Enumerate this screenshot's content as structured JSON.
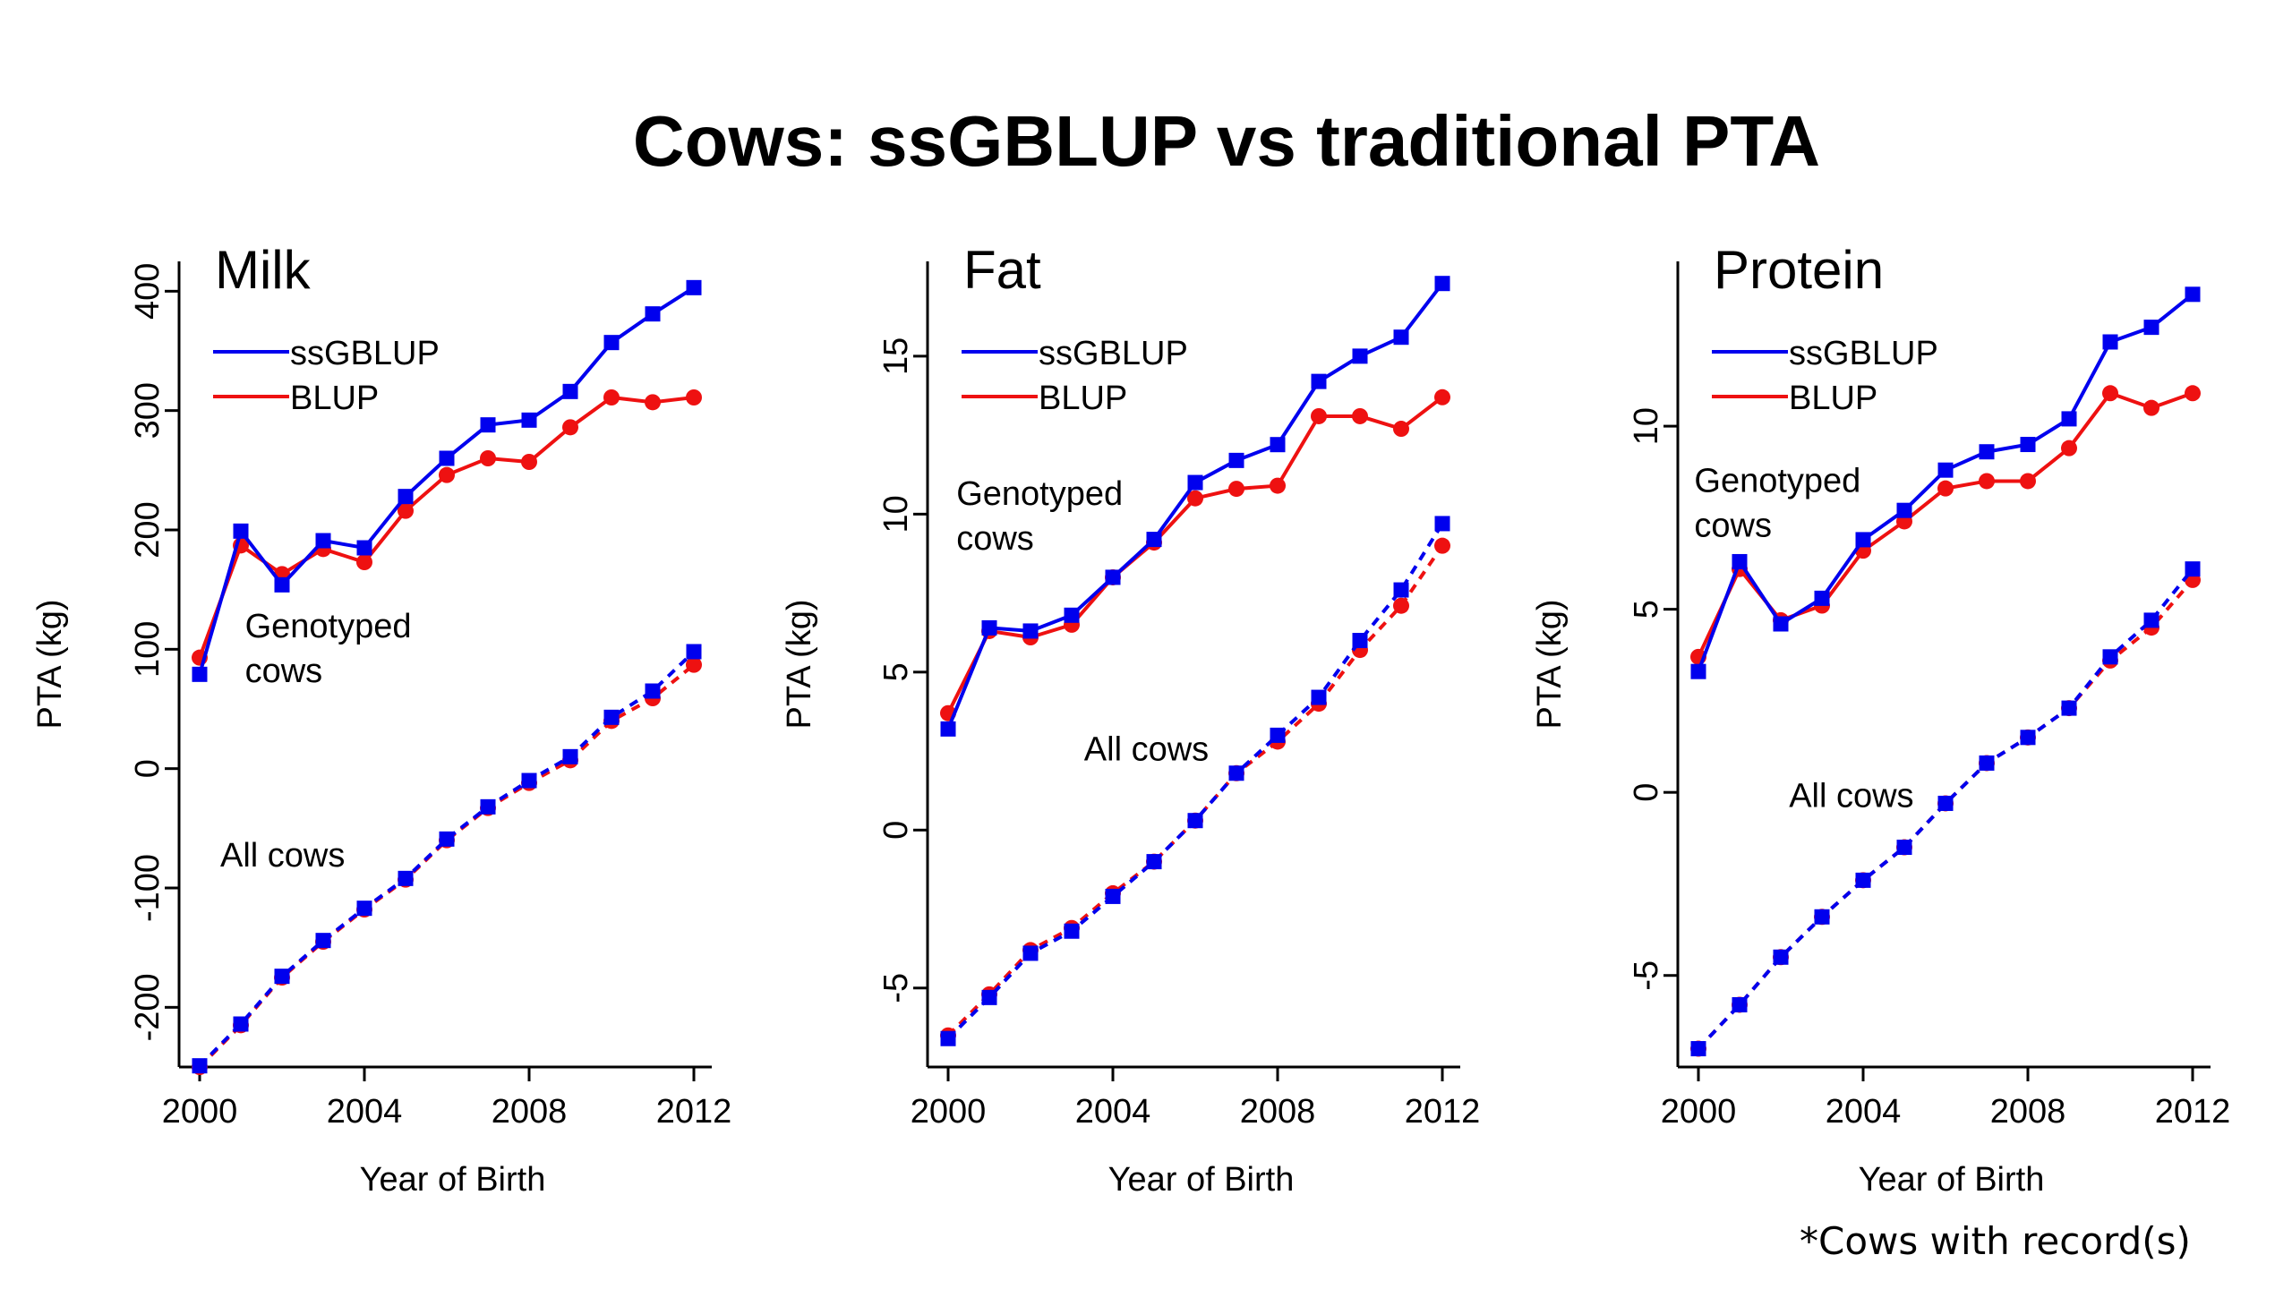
{
  "title": "Cows: ssGBLUP vs traditional PTA",
  "footnote": "*Cows with record(s)",
  "colors": {
    "ssGBLUP": "#0000ee",
    "BLUP": "#ee1111",
    "axis": "#000000"
  },
  "chart_data": [
    {
      "type": "line",
      "title": "Milk",
      "xlabel": "Year of Birth",
      "ylabel": "PTA (kg)",
      "xlim": [
        2000,
        2012
      ],
      "ylim": [
        -250,
        425
      ],
      "xticks": [
        2000,
        2004,
        2008,
        2012
      ],
      "yticks": [
        -200,
        -100,
        0,
        100,
        200,
        300,
        400
      ],
      "x": [
        2000,
        2001,
        2002,
        2003,
        2004,
        2005,
        2006,
        2007,
        2008,
        2009,
        2010,
        2011,
        2012
      ],
      "legend": [
        "ssGBLUP",
        "BLUP"
      ],
      "annotations": [
        {
          "text": [
            "Genotyped",
            "cows"
          ],
          "x": 2001.1,
          "y": 110
        },
        {
          "text": [
            "All cows"
          ],
          "x": 2000.5,
          "y": -82
        }
      ],
      "series": [
        {
          "name": "ssGBLUP",
          "group": "Genotyped cows",
          "values": [
            79,
            199,
            154,
            191,
            185,
            228,
            260,
            288,
            292,
            316,
            357,
            381,
            403
          ]
        },
        {
          "name": "BLUP",
          "group": "Genotyped cows",
          "values": [
            93,
            187,
            163,
            184,
            173,
            216,
            246,
            260,
            257,
            286,
            311,
            307,
            311
          ]
        },
        {
          "name": "ssGBLUP",
          "group": "All cows",
          "values": [
            -249,
            -214,
            -174,
            -144,
            -117,
            -92,
            -59,
            -32,
            -10,
            10,
            43,
            65,
            98
          ]
        },
        {
          "name": "BLUP",
          "group": "All cows",
          "values": [
            -250,
            -215,
            -175,
            -145,
            -118,
            -93,
            -60,
            -33,
            -12,
            7,
            40,
            59,
            87
          ]
        }
      ]
    },
    {
      "type": "line",
      "title": "Fat",
      "xlabel": "Year of Birth",
      "ylabel": "PTA (kg)",
      "xlim": [
        2000,
        2012
      ],
      "ylim": [
        -7.5,
        18
      ],
      "xticks": [
        2000,
        2004,
        2008,
        2012
      ],
      "yticks": [
        -5,
        0,
        5,
        10,
        15
      ],
      "x": [
        2000,
        2001,
        2002,
        2003,
        2004,
        2005,
        2006,
        2007,
        2008,
        2009,
        2010,
        2011,
        2012
      ],
      "legend": [
        "ssGBLUP",
        "BLUP"
      ],
      "annotations": [
        {
          "text": [
            "Genotyped",
            "cows"
          ],
          "x": 2000.2,
          "y": 10.3
        },
        {
          "text": [
            "All cows"
          ],
          "x": 2003.3,
          "y": 2.2
        }
      ],
      "series": [
        {
          "name": "ssGBLUP",
          "group": "Genotyped cows",
          "values": [
            3.2,
            6.4,
            6.3,
            6.8,
            8.0,
            9.2,
            11.0,
            11.7,
            12.2,
            14.2,
            15.0,
            15.6,
            17.3
          ]
        },
        {
          "name": "BLUP",
          "group": "Genotyped cows",
          "values": [
            3.7,
            6.3,
            6.1,
            6.5,
            8.0,
            9.1,
            10.5,
            10.8,
            10.9,
            13.1,
            13.1,
            12.7,
            13.7
          ]
        },
        {
          "name": "ssGBLUP",
          "group": "All cows",
          "values": [
            -6.6,
            -5.3,
            -3.9,
            -3.2,
            -2.1,
            -1.0,
            0.3,
            1.8,
            3.0,
            4.2,
            6.0,
            7.6,
            9.7
          ]
        },
        {
          "name": "BLUP",
          "group": "All cows",
          "values": [
            -6.5,
            -5.2,
            -3.8,
            -3.1,
            -2.0,
            -1.0,
            0.3,
            1.8,
            2.8,
            4.0,
            5.7,
            7.1,
            9.0
          ]
        }
      ]
    },
    {
      "type": "line",
      "title": "Protein",
      "xlabel": "Year of Birth",
      "ylabel": "PTA (kg)",
      "xlim": [
        2000,
        2012
      ],
      "ylim": [
        -7.5,
        14.5
      ],
      "xticks": [
        2000,
        2004,
        2008,
        2012
      ],
      "yticks": [
        -5,
        0,
        5,
        10
      ],
      "x": [
        2000,
        2001,
        2002,
        2003,
        2004,
        2005,
        2006,
        2007,
        2008,
        2009,
        2010,
        2011,
        2012
      ],
      "legend": [
        "ssGBLUP",
        "BLUP"
      ],
      "annotations": [
        {
          "text": [
            "Genotyped",
            "cows"
          ],
          "x": 1999.9,
          "y": 8.2
        },
        {
          "text": [
            "All cows"
          ],
          "x": 2002.2,
          "y": -0.4
        }
      ],
      "series": [
        {
          "name": "ssGBLUP",
          "group": "Genotyped cows",
          "values": [
            3.3,
            6.3,
            4.6,
            5.3,
            6.9,
            7.7,
            8.8,
            9.3,
            9.5,
            10.2,
            12.3,
            12.7,
            13.6
          ]
        },
        {
          "name": "BLUP",
          "group": "Genotyped cows",
          "values": [
            3.7,
            6.1,
            4.7,
            5.1,
            6.6,
            7.4,
            8.3,
            8.5,
            8.5,
            9.4,
            10.9,
            10.5,
            10.9
          ]
        },
        {
          "name": "ssGBLUP",
          "group": "All cows",
          "values": [
            -7.0,
            -5.8,
            -4.5,
            -3.4,
            -2.4,
            -1.5,
            -0.3,
            0.8,
            1.5,
            2.3,
            3.7,
            4.7,
            6.1
          ]
        },
        {
          "name": "BLUP",
          "group": "All cows",
          "values": [
            -7.0,
            -5.8,
            -4.5,
            -3.4,
            -2.4,
            -1.5,
            -0.3,
            0.8,
            1.5,
            2.3,
            3.6,
            4.5,
            5.8
          ]
        }
      ]
    }
  ]
}
